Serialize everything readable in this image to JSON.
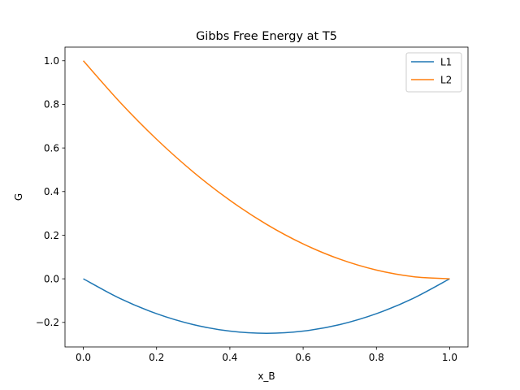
{
  "chart_data": {
    "type": "line",
    "title": "Gibbs Free Energy at T5",
    "xlabel": "x_B",
    "ylabel": "G",
    "xlim": [
      -0.05,
      1.05
    ],
    "ylim": [
      -0.3125,
      1.0625
    ],
    "x_ticks": [
      0.0,
      0.2,
      0.4,
      0.6,
      0.8,
      1.0
    ],
    "x_tick_labels": [
      "0.0",
      "0.2",
      "0.4",
      "0.6",
      "0.8",
      "1.0"
    ],
    "y_ticks": [
      -0.2,
      0.0,
      0.2,
      0.4,
      0.6,
      0.8,
      1.0
    ],
    "y_tick_labels": [
      "−0.2",
      "0.0",
      "0.2",
      "0.4",
      "0.6",
      "0.8",
      "1.0"
    ],
    "grid": false,
    "legend_position": "top-right",
    "x": [
      0.0,
      0.1,
      0.2,
      0.3,
      0.4,
      0.5,
      0.6,
      0.7,
      0.8,
      0.9,
      1.0
    ],
    "series": [
      {
        "name": "L1",
        "color": "#1f77b4",
        "values": [
          0.0,
          -0.09,
          -0.16,
          -0.21,
          -0.24,
          -0.25,
          -0.24,
          -0.21,
          -0.16,
          -0.09,
          0.0
        ]
      },
      {
        "name": "L2",
        "color": "#ff7f0e",
        "values": [
          1.0,
          0.81,
          0.64,
          0.49,
          0.36,
          0.25,
          0.16,
          0.09,
          0.04,
          0.01,
          0.0
        ]
      }
    ]
  }
}
